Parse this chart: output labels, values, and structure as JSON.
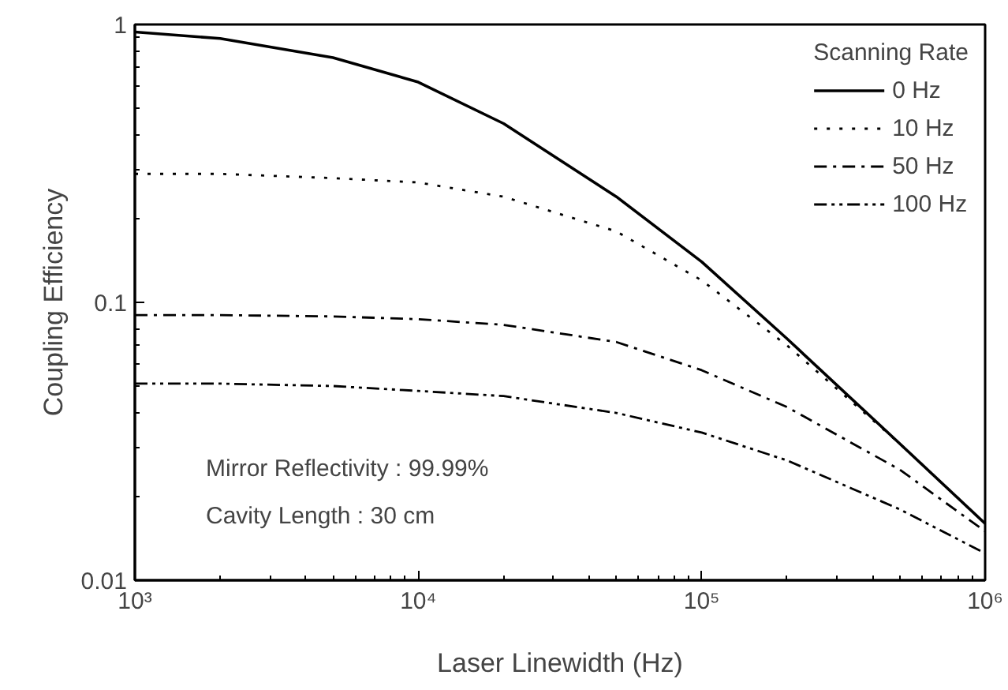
{
  "chart_data": {
    "type": "line",
    "xlabel": "Laser Linewidth (Hz)",
    "ylabel": "Coupling Efficiency",
    "legend_title": "Scanning Rate",
    "x": [
      1000,
      2000,
      5000,
      10000,
      20000,
      50000,
      100000,
      200000,
      500000,
      1000000
    ],
    "series": [
      {
        "name": "0 Hz",
        "color": "#000000",
        "line_style": "solid",
        "values": [
          0.94,
          0.89,
          0.76,
          0.62,
          0.44,
          0.24,
          0.14,
          0.074,
          0.031,
          0.016
        ]
      },
      {
        "name": "10 Hz",
        "color": "#000000",
        "line_style": "dotted",
        "values": [
          0.29,
          0.29,
          0.28,
          0.27,
          0.24,
          0.18,
          0.12,
          0.07,
          0.031,
          0.016
        ]
      },
      {
        "name": "50 Hz",
        "color": "#000000",
        "line_style": "dashdot",
        "values": [
          0.09,
          0.09,
          0.089,
          0.087,
          0.083,
          0.072,
          0.057,
          0.042,
          0.025,
          0.015
        ]
      },
      {
        "name": "100 Hz",
        "color": "#000000",
        "line_style": "dashdotdot",
        "values": [
          0.051,
          0.051,
          0.05,
          0.048,
          0.046,
          0.04,
          0.034,
          0.027,
          0.018,
          0.0125
        ]
      }
    ],
    "log": "xy",
    "xlim": [
      1000,
      1000000
    ],
    "ylim": [
      0.01,
      1
    ],
    "xticks": [
      {
        "value": 1000,
        "label": "10³"
      },
      {
        "value": 10000,
        "label": "10⁴"
      },
      {
        "value": 100000,
        "label": "10⁵"
      },
      {
        "value": 1000000,
        "label": "10⁶"
      }
    ],
    "yticks": [
      0.01,
      0.1,
      1
    ],
    "legend": "top right",
    "grid": false,
    "marker": "none",
    "annotations": [
      "Mirror Reflectivity : 99.99%",
      "Cavity Length : 30 cm"
    ]
  }
}
